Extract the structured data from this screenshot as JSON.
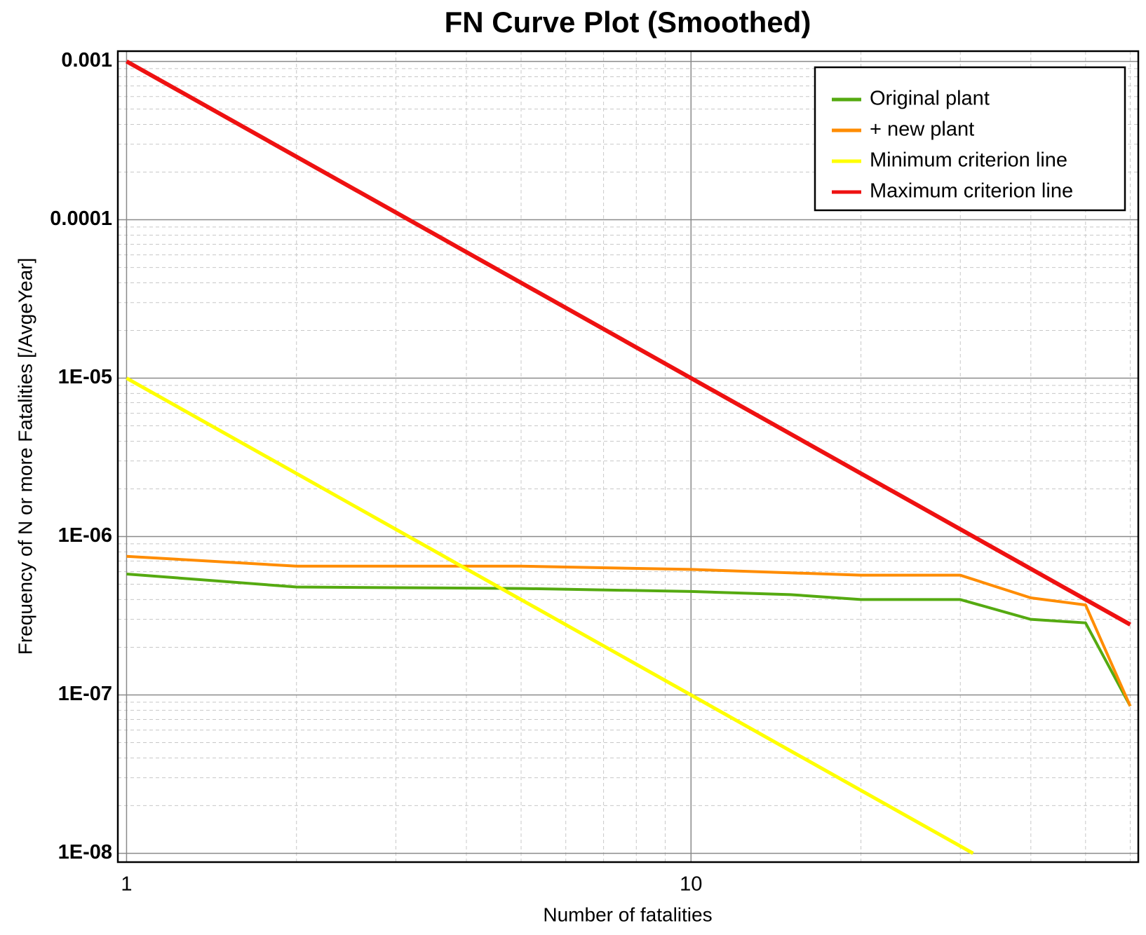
{
  "chart_data": {
    "type": "line",
    "title": "FN Curve Plot (Smoothed)",
    "x_label": "Number of fatalities",
    "y_label": "Frequency of N or more Fatalities [/AvgeYear]",
    "x_scale": "log",
    "y_scale": "log",
    "xlim": [
      0.965,
      62
    ],
    "ylim": [
      8.8e-09,
      0.00116
    ],
    "xticks": [
      1,
      10
    ],
    "xminorticks": [
      2,
      3,
      4,
      5,
      6,
      7,
      8,
      9,
      20,
      30,
      40,
      50,
      60
    ],
    "yticks": [
      {
        "value": 1e-08,
        "label": "1E-08"
      },
      {
        "value": 1e-07,
        "label": "1E-07"
      },
      {
        "value": 1e-06,
        "label": "1E-06"
      },
      {
        "value": 1e-05,
        "label": "1E-05"
      },
      0.0001,
      0.001
    ],
    "yminorticks": [
      2e-08,
      3e-08,
      4e-08,
      5e-08,
      6e-08,
      7e-08,
      8e-08,
      9e-08,
      2e-07,
      3e-07,
      4e-07,
      5e-07,
      6e-07,
      7e-07,
      8e-07,
      9e-07,
      2e-06,
      3e-06,
      4e-06,
      5e-06,
      6e-06,
      7e-06,
      8e-06,
      9e-06,
      2e-05,
      3e-05,
      4e-05,
      5e-05,
      6e-05,
      7e-05,
      8e-05,
      9e-05,
      0.0002,
      0.0003,
      0.0004,
      0.0005,
      0.0006,
      0.0007,
      0.0008,
      0.0009
    ],
    "grid": true,
    "minor_grid": true,
    "legend": "upper right",
    "series": [
      {
        "name": "Original plant",
        "color": "#55aa11",
        "width": 4,
        "x": [
          1,
          2,
          5,
          10,
          15,
          20,
          30,
          40,
          50,
          60
        ],
        "values": [
          5.8e-07,
          4.8e-07,
          4.7e-07,
          4.5e-07,
          4.3e-07,
          4e-07,
          4e-07,
          3e-07,
          2.85e-07,
          8.5e-08
        ]
      },
      {
        "name": "+ new plant",
        "color": "#ff8c00",
        "width": 4,
        "x": [
          1,
          2,
          5,
          10,
          20,
          30,
          40,
          50,
          60
        ],
        "values": [
          7.5e-07,
          6.5e-07,
          6.5e-07,
          6.2e-07,
          5.7e-07,
          5.7e-07,
          4.1e-07,
          3.7e-07,
          8.5e-08
        ]
      },
      {
        "name": "Minimum criterion line",
        "color": "#ffff00",
        "width": 5,
        "x": [
          1,
          31.6
        ],
        "values": [
          1e-05,
          1e-08
        ]
      },
      {
        "name": "Maximum criterion line",
        "color": "#ee1111",
        "width": 6,
        "x": [
          1,
          60
        ],
        "values": [
          0.001,
          2.78e-07
        ]
      }
    ]
  }
}
